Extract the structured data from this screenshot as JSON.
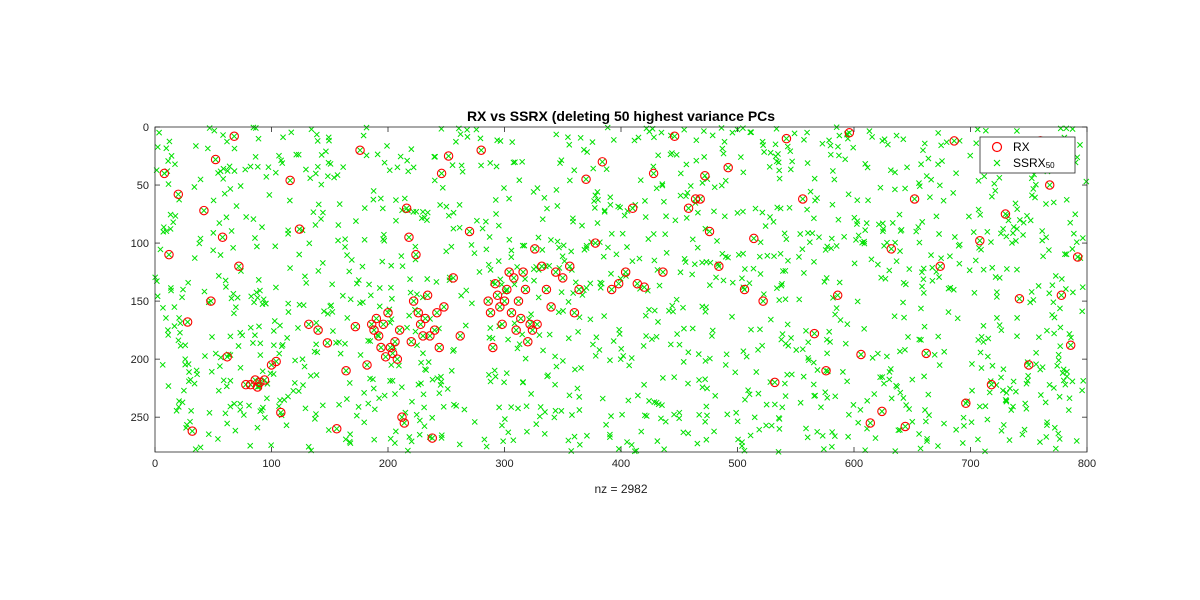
{
  "chart_data": {
    "type": "scatter",
    "title": "RX vs SSRX (deleting 50 highest variance PCs",
    "xlabel": "nz = 2982",
    "xlim": [
      0,
      800
    ],
    "ylim": [
      0,
      280
    ],
    "y_reversed": true,
    "xticks": [
      "0",
      "100",
      "200",
      "300",
      "400",
      "500",
      "600",
      "700",
      "800"
    ],
    "yticks": [
      "0",
      "50",
      "100",
      "150",
      "200",
      "250"
    ],
    "grid": false,
    "legend_position": "top-right",
    "series": [
      {
        "name": "RX",
        "marker": "circle",
        "color": "#ff0000",
        "points": [
          [
            8,
            40
          ],
          [
            12,
            110
          ],
          [
            20,
            58
          ],
          [
            28,
            168
          ],
          [
            32,
            262
          ],
          [
            42,
            72
          ],
          [
            48,
            150
          ],
          [
            52,
            28
          ],
          [
            58,
            95
          ],
          [
            62,
            198
          ],
          [
            68,
            8
          ],
          [
            72,
            120
          ],
          [
            78,
            222
          ],
          [
            82,
            222
          ],
          [
            86,
            218
          ],
          [
            88,
            224
          ],
          [
            90,
            220
          ],
          [
            94,
            218
          ],
          [
            100,
            205
          ],
          [
            104,
            202
          ],
          [
            108,
            246
          ],
          [
            116,
            46
          ],
          [
            124,
            88
          ],
          [
            132,
            170
          ],
          [
            140,
            175
          ],
          [
            148,
            186
          ],
          [
            156,
            260
          ],
          [
            164,
            210
          ],
          [
            172,
            172
          ],
          [
            176,
            20
          ],
          [
            182,
            205
          ],
          [
            186,
            170
          ],
          [
            188,
            175
          ],
          [
            190,
            165
          ],
          [
            192,
            180
          ],
          [
            194,
            190
          ],
          [
            196,
            170
          ],
          [
            198,
            198
          ],
          [
            200,
            160
          ],
          [
            202,
            190
          ],
          [
            204,
            195
          ],
          [
            206,
            185
          ],
          [
            208,
            200
          ],
          [
            210,
            175
          ],
          [
            212,
            250
          ],
          [
            214,
            255
          ],
          [
            216,
            70
          ],
          [
            218,
            95
          ],
          [
            220,
            185
          ],
          [
            222,
            150
          ],
          [
            224,
            110
          ],
          [
            226,
            160
          ],
          [
            228,
            170
          ],
          [
            230,
            180
          ],
          [
            232,
            165
          ],
          [
            234,
            145
          ],
          [
            236,
            180
          ],
          [
            238,
            268
          ],
          [
            240,
            175
          ],
          [
            242,
            160
          ],
          [
            244,
            190
          ],
          [
            246,
            40
          ],
          [
            248,
            155
          ],
          [
            252,
            25
          ],
          [
            256,
            130
          ],
          [
            262,
            180
          ],
          [
            270,
            90
          ],
          [
            280,
            20
          ],
          [
            286,
            150
          ],
          [
            288,
            160
          ],
          [
            290,
            190
          ],
          [
            292,
            135
          ],
          [
            294,
            145
          ],
          [
            296,
            155
          ],
          [
            298,
            170
          ],
          [
            300,
            150
          ],
          [
            302,
            140
          ],
          [
            304,
            125
          ],
          [
            306,
            160
          ],
          [
            308,
            130
          ],
          [
            310,
            175
          ],
          [
            312,
            150
          ],
          [
            314,
            165
          ],
          [
            316,
            125
          ],
          [
            318,
            140
          ],
          [
            320,
            185
          ],
          [
            322,
            170
          ],
          [
            324,
            175
          ],
          [
            326,
            105
          ],
          [
            328,
            170
          ],
          [
            332,
            120
          ],
          [
            336,
            140
          ],
          [
            340,
            155
          ],
          [
            344,
            125
          ],
          [
            350,
            130
          ],
          [
            356,
            120
          ],
          [
            360,
            160
          ],
          [
            364,
            140
          ],
          [
            370,
            45
          ],
          [
            378,
            100
          ],
          [
            384,
            30
          ],
          [
            392,
            140
          ],
          [
            398,
            135
          ],
          [
            404,
            125
          ],
          [
            410,
            70
          ],
          [
            414,
            135
          ],
          [
            420,
            138
          ],
          [
            428,
            40
          ],
          [
            436,
            125
          ],
          [
            446,
            8
          ],
          [
            458,
            70
          ],
          [
            464,
            62
          ],
          [
            468,
            62
          ],
          [
            472,
            42
          ],
          [
            476,
            90
          ],
          [
            484,
            120
          ],
          [
            492,
            35
          ],
          [
            506,
            140
          ],
          [
            514,
            96
          ],
          [
            522,
            150
          ],
          [
            532,
            220
          ],
          [
            542,
            10
          ],
          [
            556,
            62
          ],
          [
            566,
            178
          ],
          [
            576,
            210
          ],
          [
            586,
            145
          ],
          [
            596,
            5
          ],
          [
            606,
            196
          ],
          [
            614,
            255
          ],
          [
            624,
            245
          ],
          [
            632,
            105
          ],
          [
            644,
            258
          ],
          [
            652,
            62
          ],
          [
            662,
            195
          ],
          [
            674,
            120
          ],
          [
            686,
            12
          ],
          [
            696,
            238
          ],
          [
            708,
            98
          ],
          [
            718,
            222
          ],
          [
            730,
            75
          ],
          [
            742,
            148
          ],
          [
            750,
            205
          ],
          [
            760,
            12
          ],
          [
            768,
            50
          ],
          [
            778,
            145
          ],
          [
            786,
            188
          ],
          [
            792,
            112
          ]
        ]
      },
      {
        "name": "SSRX50",
        "marker": "x",
        "color": "#00e000",
        "generated_count": 1500
      }
    ]
  },
  "legend": {
    "rx_label": "RX",
    "ssrx_label": "SSRX",
    "ssrx_sub": "50"
  }
}
